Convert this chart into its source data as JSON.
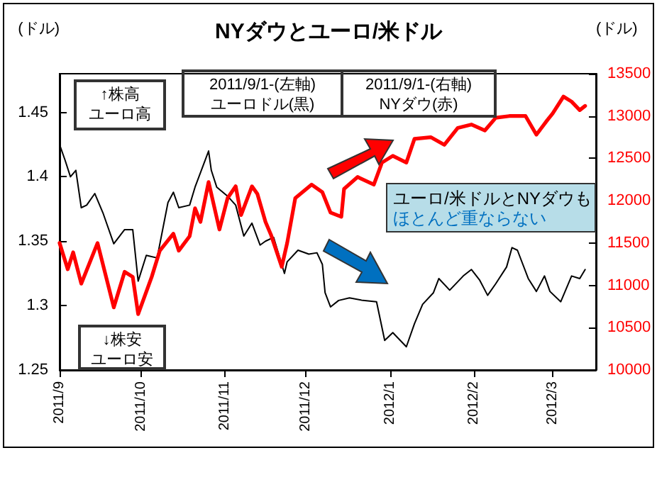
{
  "chart_data": {
    "type": "line",
    "title": "NYダウとユーロ/米ドル",
    "ylabel": "(ドル)",
    "y2label": "(ドル)",
    "xlim": [
      "2011-09-01",
      "2012-03-17"
    ],
    "xticks": [
      {
        "value": "2011-09-01",
        "label": "2011/9"
      },
      {
        "value": "2011-10-01",
        "label": "2011/10"
      },
      {
        "value": "2011-11-01",
        "label": "2011/11"
      },
      {
        "value": "2011-12-01",
        "label": "2011/12"
      },
      {
        "value": "2012-01-01",
        "label": "2012/1"
      },
      {
        "value": "2012-02-01",
        "label": "2012/2"
      },
      {
        "value": "2012-03-01",
        "label": "2012/3"
      }
    ],
    "ylim": [
      1.25,
      1.48
    ],
    "yticks": [
      1.25,
      1.3,
      1.35,
      1.4,
      1.45
    ],
    "y2lim": [
      10000,
      13500
    ],
    "y2ticks": [
      10000,
      10500,
      11000,
      11500,
      12000,
      12500,
      13000,
      13500
    ],
    "grid": false,
    "marker": "none",
    "line_style": "solid",
    "annotations": [
      "2011/9/1-(左軸)\nユーロドル(黒)",
      "2011/9/1-(右軸)\nNYダウ(赤)",
      "↑株高ユーロ高",
      "ユーロ/米ドルとNYダウもほとんど重ならない",
      "↓株安ユーロ安"
    ],
    "series": [
      {
        "color": "#000000",
        "x": [
          "2011-09-01",
          "2011-09-03",
          "2011-09-05",
          "2011-09-07",
          "2011-09-09",
          "2011-09-11",
          "2011-09-14",
          "2011-09-17",
          "2011-09-21",
          "2011-09-25",
          "2011-09-28",
          "2011-09-30",
          "2011-10-03",
          "2011-10-07",
          "2011-10-11",
          "2011-10-13",
          "2011-10-15",
          "2011-10-19",
          "2011-10-21",
          "2011-10-26",
          "2011-10-27",
          "2011-10-29",
          "2011-11-02",
          "2011-11-05",
          "2011-11-08",
          "2011-11-11",
          "2011-11-14",
          "2011-11-16",
          "2011-11-19",
          "2011-11-23",
          "2011-11-24",
          "2011-11-28",
          "2011-12-02",
          "2011-12-05",
          "2011-12-07",
          "2011-12-08",
          "2011-12-10",
          "2011-12-13",
          "2011-12-17",
          "2011-12-22",
          "2011-12-27",
          "2011-12-30",
          "2012-01-02",
          "2012-01-07",
          "2012-01-10",
          "2012-01-13",
          "2012-01-17",
          "2012-01-19",
          "2012-01-23",
          "2012-01-28",
          "2012-01-31",
          "2012-02-03",
          "2012-02-06",
          "2012-02-09",
          "2012-02-13",
          "2012-02-15",
          "2012-02-17",
          "2012-02-21",
          "2012-02-24",
          "2012-02-27",
          "2012-02-29",
          "2012-03-04",
          "2012-03-08",
          "2012-03-11",
          "2012-03-13"
        ],
        "values": [
          1.425,
          1.413,
          1.4,
          1.405,
          1.376,
          1.378,
          1.387,
          1.372,
          1.348,
          1.359,
          1.359,
          1.319,
          1.339,
          1.337,
          1.38,
          1.388,
          1.376,
          1.378,
          1.392,
          1.42,
          1.405,
          1.392,
          1.385,
          1.378,
          1.354,
          1.364,
          1.347,
          1.35,
          1.353,
          1.325,
          1.334,
          1.343,
          1.34,
          1.341,
          1.332,
          1.31,
          1.299,
          1.304,
          1.306,
          1.304,
          1.303,
          1.273,
          1.279,
          1.268,
          1.286,
          1.301,
          1.31,
          1.321,
          1.312,
          1.323,
          1.328,
          1.32,
          1.308,
          1.317,
          1.33,
          1.345,
          1.343,
          1.321,
          1.311,
          1.323,
          1.311,
          1.303,
          1.323,
          1.321,
          1.328
        ]
      },
      {
        "color": "#ff0000",
        "axis": "y2",
        "x": [
          "2011-09-01",
          "2011-09-04",
          "2011-09-06",
          "2011-09-09",
          "2011-09-15",
          "2011-09-21",
          "2011-09-25",
          "2011-09-28",
          "2011-09-30",
          "2011-10-05",
          "2011-10-08",
          "2011-10-13",
          "2011-10-15",
          "2011-10-19",
          "2011-10-21",
          "2011-10-23",
          "2011-10-26",
          "2011-10-30",
          "2011-11-02",
          "2011-11-05",
          "2011-11-07",
          "2011-11-11",
          "2011-11-13",
          "2011-11-16",
          "2011-11-18",
          "2011-11-22",
          "2011-11-24",
          "2011-11-27",
          "2011-12-03",
          "2011-12-07",
          "2011-12-10",
          "2011-12-14",
          "2011-12-15",
          "2011-12-20",
          "2011-12-26",
          "2011-12-29",
          "2012-01-02",
          "2012-01-07",
          "2012-01-10",
          "2012-01-16",
          "2012-01-21",
          "2012-01-26",
          "2012-01-31",
          "2012-02-05",
          "2012-02-09",
          "2012-02-14",
          "2012-02-20",
          "2012-02-24",
          "2012-02-28",
          "2012-03-01",
          "2012-03-05",
          "2012-03-08",
          "2012-03-11",
          "2012-03-13"
        ],
        "values": [
          11500,
          11190,
          11390,
          11020,
          11500,
          10740,
          11160,
          11100,
          10660,
          11100,
          11410,
          11610,
          11410,
          11580,
          11910,
          11750,
          12220,
          11660,
          12030,
          12170,
          11830,
          12170,
          12080,
          11750,
          11600,
          11220,
          11500,
          12030,
          12190,
          12100,
          11860,
          11810,
          12140,
          12280,
          12190,
          12450,
          12530,
          12450,
          12730,
          12750,
          12660,
          12860,
          12900,
          12830,
          12980,
          13000,
          13000,
          12780,
          12950,
          13030,
          13230,
          13170,
          13070,
          13120
        ]
      }
    ]
  }
}
